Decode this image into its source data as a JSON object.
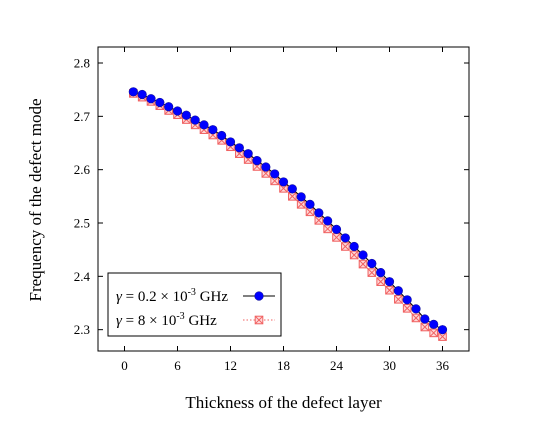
{
  "chart_data": {
    "type": "line",
    "xlabel": "Thickness of the defect layer",
    "ylabel": "Frequency of the defect mode",
    "xlim": [
      -3,
      39
    ],
    "ylim": [
      2.26,
      2.83
    ],
    "xticks": [
      0,
      6,
      12,
      18,
      24,
      30,
      36
    ],
    "yticks": [
      2.3,
      2.4,
      2.5,
      2.6,
      2.7,
      2.8
    ],
    "grid": false,
    "legend_position": "bottom-left",
    "x": [
      1,
      2,
      3,
      4,
      5,
      6,
      7,
      8,
      9,
      10,
      11,
      12,
      13,
      14,
      15,
      16,
      17,
      18,
      19,
      20,
      21,
      22,
      23,
      24,
      25,
      26,
      27,
      28,
      29,
      30,
      31,
      32,
      33,
      34,
      35,
      36
    ],
    "series": [
      {
        "name": "γ = 0.2 × 10^-3 GHz",
        "legend": {
          "symbol": "γ",
          "prefix": " = 0.2 × 10",
          "exp": "-3",
          "unit": " GHz"
        },
        "color": "#0000ff",
        "marker": "filled-circle",
        "line": "solid",
        "values": [
          2.746,
          2.741,
          2.733,
          2.726,
          2.718,
          2.71,
          2.702,
          2.693,
          2.684,
          2.675,
          2.664,
          2.652,
          2.641,
          2.63,
          2.617,
          2.605,
          2.592,
          2.577,
          2.564,
          2.549,
          2.535,
          2.519,
          2.504,
          2.488,
          2.472,
          2.456,
          2.44,
          2.424,
          2.407,
          2.39,
          2.373,
          2.356,
          2.339,
          2.32,
          2.31,
          2.3
        ]
      },
      {
        "name": "γ = 8 × 10^-3 GHz",
        "legend": {
          "symbol": "γ",
          "prefix": " = 8 × 10",
          "exp": "-3",
          "unit": " GHz"
        },
        "color": "#f06060",
        "marker": "crossed-square",
        "line": "dotted",
        "values": [
          2.743,
          2.736,
          2.728,
          2.72,
          2.711,
          2.703,
          2.694,
          2.684,
          2.675,
          2.665,
          2.655,
          2.643,
          2.63,
          2.619,
          2.606,
          2.593,
          2.579,
          2.565,
          2.55,
          2.535,
          2.521,
          2.505,
          2.489,
          2.473,
          2.456,
          2.44,
          2.423,
          2.407,
          2.39,
          2.374,
          2.357,
          2.34,
          2.322,
          2.305,
          2.294,
          2.287
        ]
      }
    ]
  }
}
